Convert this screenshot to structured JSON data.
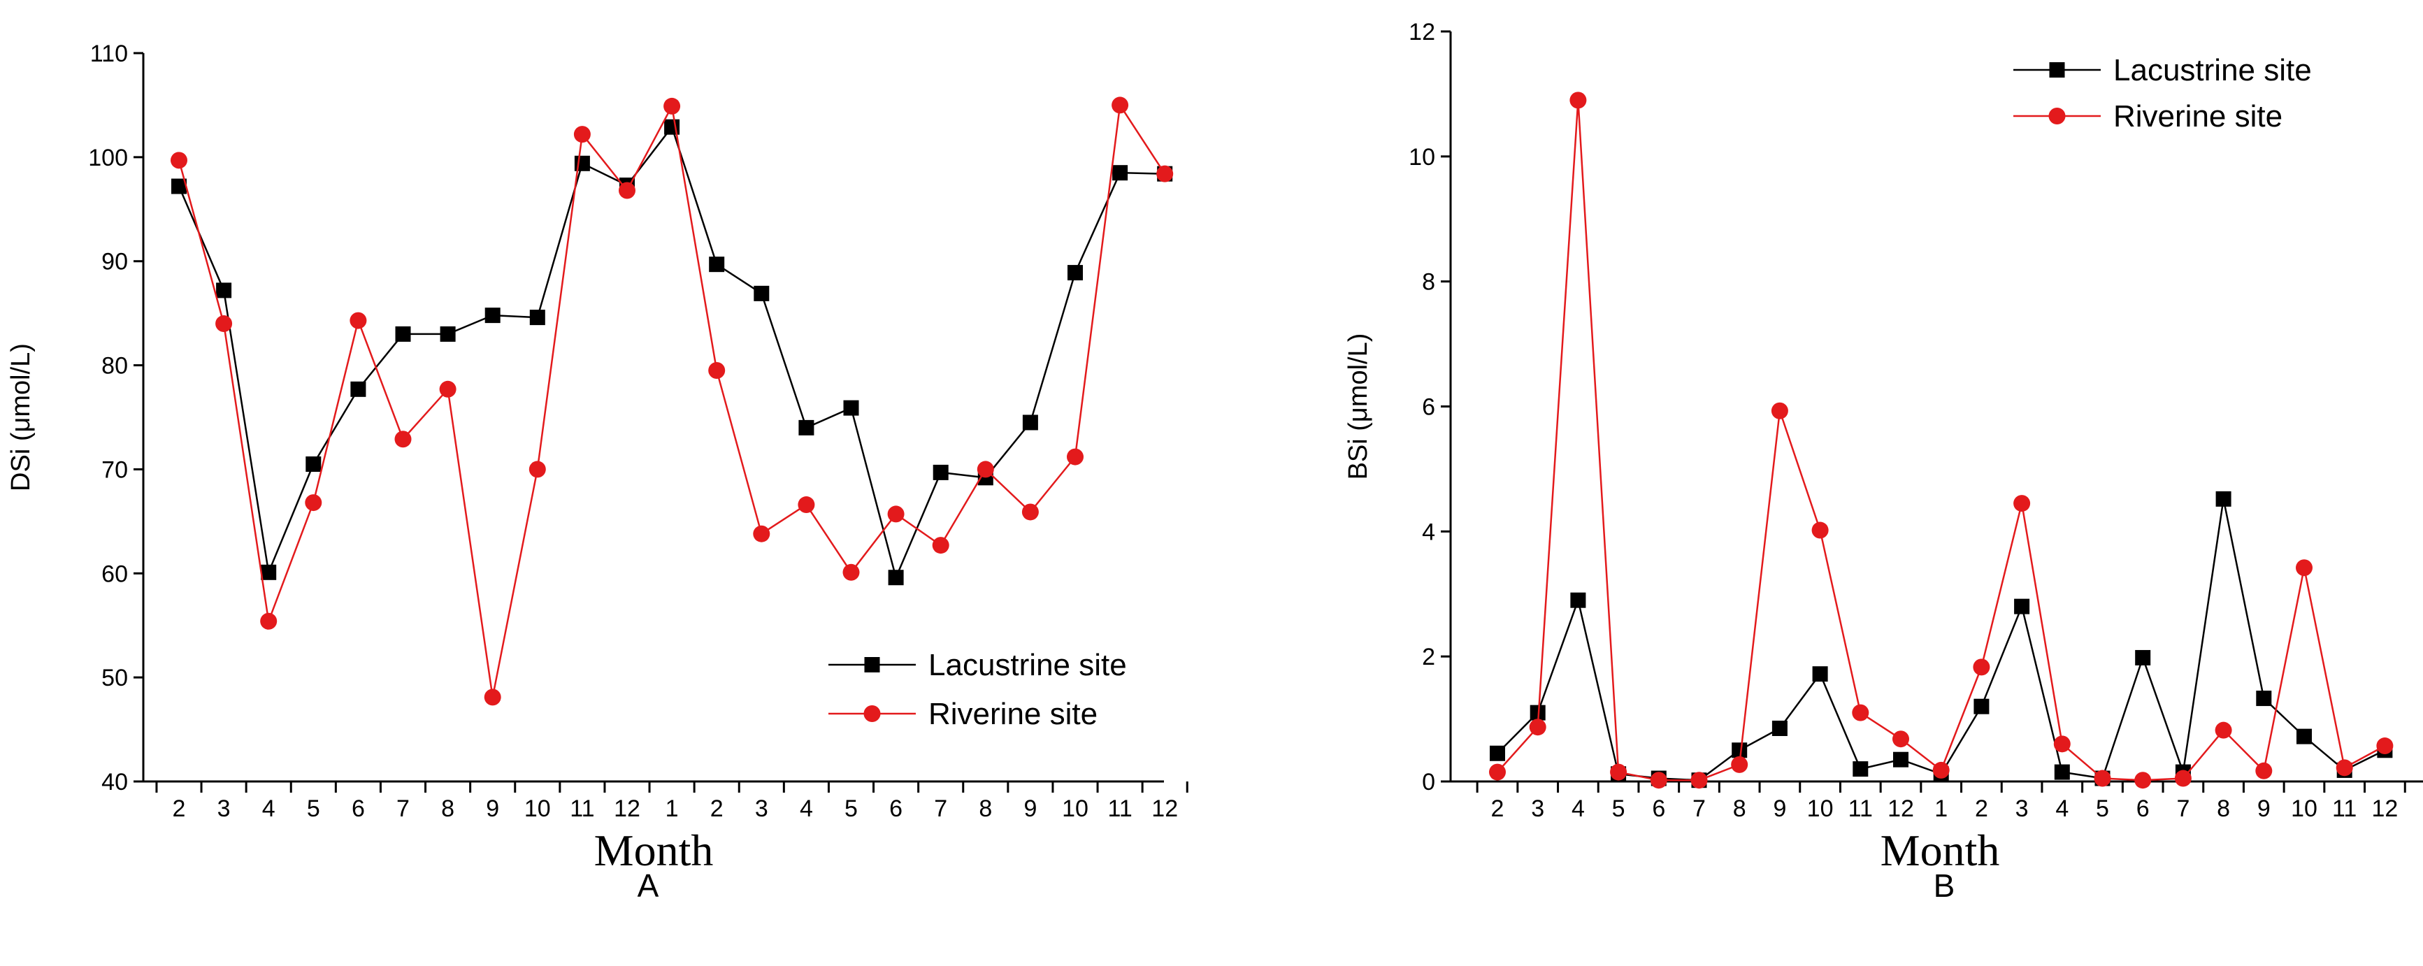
{
  "chart_data": [
    {
      "type": "line",
      "panel": "A",
      "xlabel": "Month",
      "ylabel": "DSi (μmol/L)",
      "categories": [
        "2",
        "3",
        "4",
        "5",
        "6",
        "7",
        "8",
        "9",
        "10",
        "11",
        "12",
        "1",
        "2",
        "3",
        "4",
        "5",
        "6",
        "7",
        "8",
        "9",
        "10",
        "11",
        "12"
      ],
      "ylim": [
        40,
        110
      ],
      "yticks": [
        40,
        50,
        60,
        70,
        80,
        90,
        100,
        110
      ],
      "legend_position": "bottom-right",
      "series": [
        {
          "name": "Lacustrine site",
          "color": "#000000",
          "marker": "square",
          "values": [
            97.2,
            87.2,
            60.1,
            70.5,
            77.7,
            83.0,
            83.0,
            84.8,
            84.6,
            99.4,
            97.3,
            102.9,
            89.7,
            86.9,
            74.0,
            75.9,
            59.6,
            69.7,
            69.2,
            74.5,
            88.9,
            98.5,
            98.4
          ]
        },
        {
          "name": "Riverine site",
          "color": "#e31a1c",
          "marker": "circle",
          "values": [
            99.7,
            84.0,
            55.4,
            66.8,
            84.3,
            72.9,
            77.7,
            48.1,
            70.0,
            102.2,
            96.8,
            104.9,
            79.5,
            63.8,
            66.6,
            60.1,
            65.7,
            62.7,
            70.0,
            65.9,
            71.2,
            105.0,
            98.4
          ]
        }
      ]
    },
    {
      "type": "line",
      "panel": "B",
      "xlabel": "Month",
      "ylabel": "BSi (μmol/L)",
      "categories": [
        "2",
        "3",
        "4",
        "5",
        "6",
        "7",
        "8",
        "9",
        "10",
        "11",
        "12",
        "1",
        "2",
        "3",
        "4",
        "5",
        "6",
        "7",
        "8",
        "9",
        "10",
        "11",
        "12"
      ],
      "ylim": [
        0,
        12
      ],
      "yticks": [
        0,
        2,
        4,
        6,
        8,
        10,
        12
      ],
      "legend_position": "top-right",
      "series": [
        {
          "name": "Lacustrine site",
          "color": "#000000",
          "marker": "square",
          "values": [
            0.45,
            1.1,
            2.9,
            0.12,
            0.05,
            0.02,
            0.5,
            0.85,
            1.72,
            0.2,
            0.35,
            0.12,
            1.2,
            2.8,
            0.15,
            0.05,
            1.98,
            0.15,
            4.52,
            1.33,
            0.72,
            0.18,
            0.5
          ]
        },
        {
          "name": "Riverine site",
          "color": "#e31a1c",
          "marker": "circle",
          "values": [
            0.15,
            0.87,
            10.9,
            0.15,
            0.02,
            0.02,
            0.27,
            5.93,
            4.02,
            1.1,
            0.68,
            0.18,
            1.83,
            4.45,
            0.6,
            0.05,
            0.02,
            0.05,
            0.82,
            0.17,
            3.42,
            0.22,
            0.57
          ]
        }
      ]
    }
  ]
}
